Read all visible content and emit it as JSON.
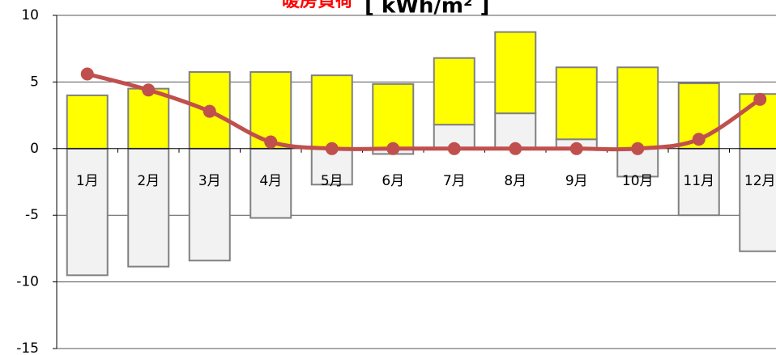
{
  "chart_data": {
    "type": "bar",
    "title": "暖房負荷",
    "subtitle": "[ kWh/m² ]",
    "categories": [
      "1月",
      "2月",
      "3月",
      "4月",
      "5月",
      "6月",
      "7月",
      "8月",
      "9月",
      "10月",
      "11月",
      "12月"
    ],
    "series": [
      {
        "name": "gray",
        "color": "#f2f2f2",
        "values": [
          -9.5,
          -8.85,
          -8.4,
          -5.2,
          -2.7,
          -0.4,
          1.8,
          2.65,
          0.7,
          -2.1,
          -5.0,
          -7.7
        ]
      },
      {
        "name": "yellow",
        "color": "#ffff00",
        "values": [
          4.0,
          4.5,
          5.75,
          5.75,
          5.5,
          4.85,
          5.0,
          6.1,
          5.4,
          6.1,
          4.9,
          4.1
        ]
      },
      {
        "name": "line",
        "type": "line",
        "color": "#c0504d",
        "values": [
          5.6,
          4.4,
          2.8,
          0.5,
          0,
          0,
          0,
          0,
          0,
          0,
          0.7,
          3.7
        ]
      }
    ],
    "ylim": [
      -15,
      10
    ],
    "yticks": [
      -15,
      -10,
      -5,
      0,
      5,
      10
    ],
    "grid": true
  }
}
